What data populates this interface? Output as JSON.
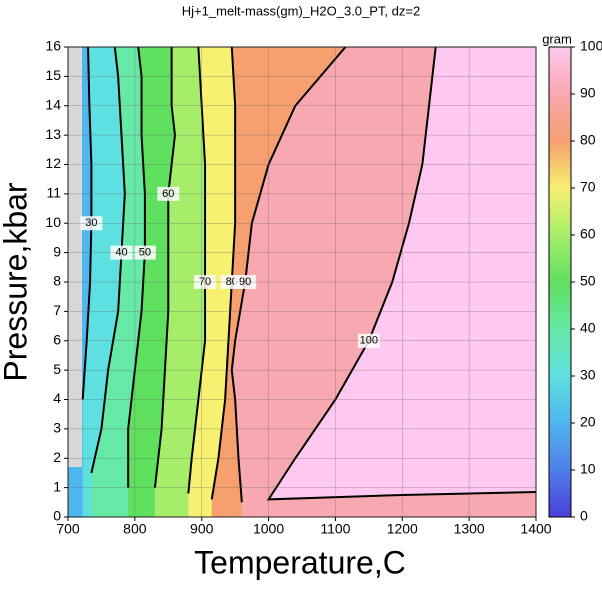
{
  "chart_data": {
    "type": "contour",
    "title": "Hj+1_melt-mass(gm)_H2O_3.0_PT, dz=2",
    "xlabel": "Temperature,C",
    "ylabel": "Pressure,kbar",
    "colorbar_label": "gram",
    "xlim": [
      700,
      1400
    ],
    "xticks": [
      700,
      800,
      900,
      1000,
      1100,
      1200,
      1300,
      1400
    ],
    "ylim": [
      0,
      16
    ],
    "yticks": [
      0,
      1,
      2,
      3,
      4,
      5,
      6,
      7,
      8,
      9,
      10,
      11,
      12,
      13,
      14,
      15,
      16
    ],
    "zlim": [
      0,
      100
    ],
    "zticks": [
      0,
      10,
      20,
      30,
      40,
      50,
      60,
      70,
      80,
      90,
      100
    ],
    "grid": true,
    "colorscale": [
      [
        0,
        "#4b3fd9"
      ],
      [
        10,
        "#4f7fe8"
      ],
      [
        20,
        "#4fb6f0"
      ],
      [
        30,
        "#5ee0e0"
      ],
      [
        40,
        "#66e8a6"
      ],
      [
        50,
        "#5fe05f"
      ],
      [
        60,
        "#a6ee6a"
      ],
      [
        70,
        "#f8f070"
      ],
      [
        80,
        "#f6a070"
      ],
      [
        90,
        "#f8a8b0"
      ],
      [
        100,
        "#ffc8f0"
      ]
    ],
    "contours": [
      {
        "level": 30,
        "x": [
          722,
          728,
          733,
          735,
          735,
          732,
          730
        ],
        "y": [
          4,
          6,
          8,
          10,
          12,
          14,
          16
        ]
      },
      {
        "level": 40,
        "x": [
          735,
          750,
          760,
          775,
          780,
          785,
          780,
          775,
          770
        ],
        "y": [
          1.5,
          3,
          5,
          7,
          9,
          11,
          13,
          15,
          16
        ]
      },
      {
        "level": 50,
        "x": [
          790,
          790,
          800,
          810,
          815,
          815,
          810,
          810,
          805
        ],
        "y": [
          1,
          3,
          5,
          7,
          9,
          11,
          13,
          15,
          16
        ]
      },
      {
        "level": 60,
        "x": [
          830,
          840,
          845,
          850,
          850,
          850,
          855,
          860,
          855,
          855
        ],
        "y": [
          1,
          3,
          5,
          7,
          9,
          11,
          12,
          13,
          14,
          16
        ]
      },
      {
        "level": 70,
        "x": [
          880,
          885,
          895,
          905,
          905,
          905,
          905,
          900,
          895
        ],
        "y": [
          0.8,
          2,
          4,
          6,
          8,
          10,
          12,
          14,
          16
        ]
      },
      {
        "level": 80,
        "x": [
          915,
          925,
          935,
          940,
          945,
          950,
          950,
          950,
          945
        ],
        "y": [
          0.6,
          2,
          4,
          6,
          8,
          10,
          12,
          14,
          16
        ]
      },
      {
        "level": 90,
        "x": [
          960,
          955,
          950,
          945,
          950,
          965,
          975,
          1000,
          1040,
          1115
        ],
        "y": [
          0.5,
          2,
          4,
          5,
          6,
          8,
          10,
          12,
          14,
          16
        ]
      },
      {
        "level": 100,
        "x": [
          1400,
          1200,
          1000,
          1040,
          1100,
          1150,
          1185,
          1210,
          1230,
          1250
        ],
        "y": [
          0.85,
          0.75,
          0.6,
          2,
          4,
          6,
          8,
          10,
          12,
          16
        ]
      }
    ]
  }
}
